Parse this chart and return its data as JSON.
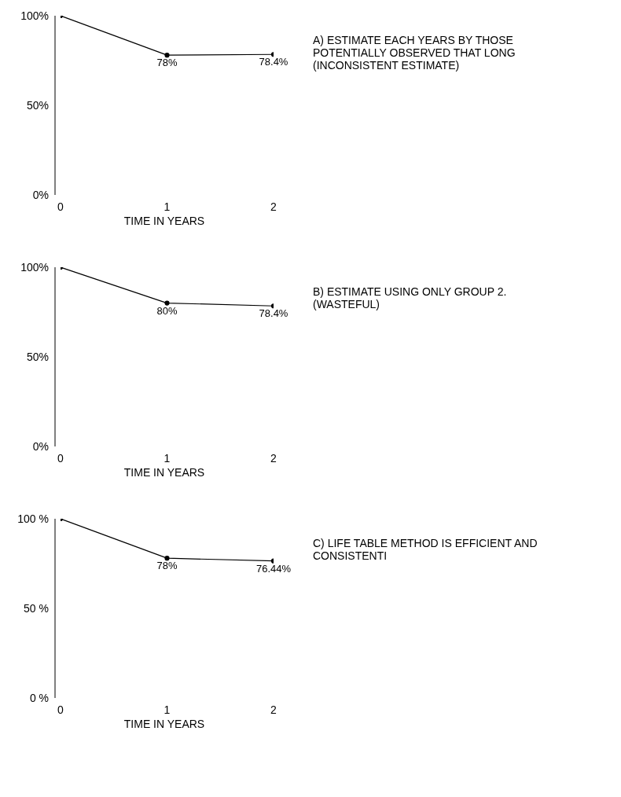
{
  "chart_data": [
    {
      "type": "line",
      "x": [
        0,
        1,
        2
      ],
      "values": [
        100,
        78,
        78.4
      ],
      "value_labels": [
        null,
        "78%",
        "78.4%"
      ],
      "color": "#000000",
      "marker": "circle",
      "xlim": [
        0,
        2
      ],
      "xticks": [
        0,
        1,
        2
      ],
      "ylim": [
        0,
        100
      ],
      "yticks": [
        {
          "value": 0,
          "label": "0%"
        },
        {
          "value": 50,
          "label": "50%"
        },
        {
          "value": 100,
          "label": "100%"
        }
      ],
      "xlabel": "TIME IN YEARS",
      "annotations": [
        "A) ESTIMATE EACH YEARS BY THOSE POTENTIALLY OBSERVED THAT LONG (INCONSISTENT ESTIMATE)"
      ]
    },
    {
      "type": "line",
      "x": [
        0,
        1,
        2
      ],
      "values": [
        100,
        80,
        78.4
      ],
      "value_labels": [
        null,
        "80%",
        "78.4%"
      ],
      "color": "#000000",
      "marker": "circle",
      "xlim": [
        0,
        2
      ],
      "xticks": [
        0,
        1,
        2
      ],
      "ylim": [
        0,
        100
      ],
      "yticks": [
        {
          "value": 0,
          "label": "0%"
        },
        {
          "value": 50,
          "label": "50%"
        },
        {
          "value": 100,
          "label": "100%"
        }
      ],
      "xlabel": "TIME IN YEARS",
      "annotations": [
        "B) ESTIMATE USING ONLY GROUP 2. (WASTEFUL)"
      ]
    },
    {
      "type": "line",
      "x": [
        0,
        1,
        2
      ],
      "values": [
        100,
        78,
        76.44
      ],
      "value_labels": [
        null,
        "78%",
        "76.44%"
      ],
      "color": "#000000",
      "marker": "circle",
      "xlim": [
        0,
        2
      ],
      "xticks": [
        0,
        1,
        2
      ],
      "ylim": [
        0,
        100
      ],
      "yticks": [
        {
          "value": 0,
          "label": "0 %"
        },
        {
          "value": 50,
          "label": "50 %"
        },
        {
          "value": 100,
          "label": "100 %"
        }
      ],
      "xlabel": "TIME IN YEARS",
      "annotations": [
        "C) LIFE TABLE METHOD IS EFFICIENT AND CONSISTENTI"
      ]
    }
  ]
}
